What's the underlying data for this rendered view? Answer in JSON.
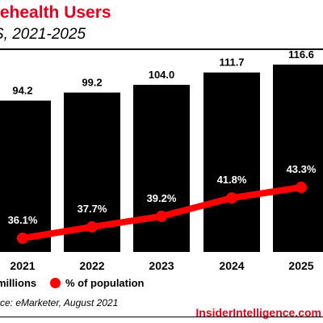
{
  "header": {
    "title": "lehealth Users",
    "subtitle": "S, 2021-2025"
  },
  "legend": {
    "bars_label": "millions",
    "line_label": "% of population"
  },
  "footer": {
    "source": "rce: eMarketer, August 2021",
    "brand": "InsiderIntelligence.com"
  },
  "colors": {
    "brand_red": "#e5001f",
    "bar": "#000000",
    "line": "#ff0000"
  },
  "chart_data": {
    "type": "bar",
    "categories": [
      "2021",
      "2022",
      "2023",
      "2024",
      "2025"
    ],
    "series": [
      {
        "name": "millions",
        "type": "bar",
        "values": [
          94.2,
          99.2,
          104.0,
          111.7,
          116.6
        ],
        "labels": [
          "94.2",
          "99.2",
          "104.0",
          "111.7",
          "116.6"
        ]
      },
      {
        "name": "% of population",
        "type": "line",
        "values": [
          36.1,
          37.7,
          39.2,
          41.8,
          43.3
        ],
        "labels": [
          "36.1%",
          "37.7%",
          "39.2%",
          "41.8%",
          "43.3%"
        ]
      }
    ],
    "title": "lehealth Users",
    "subtitle": "S, 2021-2025",
    "xlabel": "",
    "ylabel": "",
    "ylim_bars": [
      0,
      116.6
    ],
    "ylim_line": [
      0,
      43.3
    ],
    "grid": false,
    "legend_position": "bottom"
  }
}
